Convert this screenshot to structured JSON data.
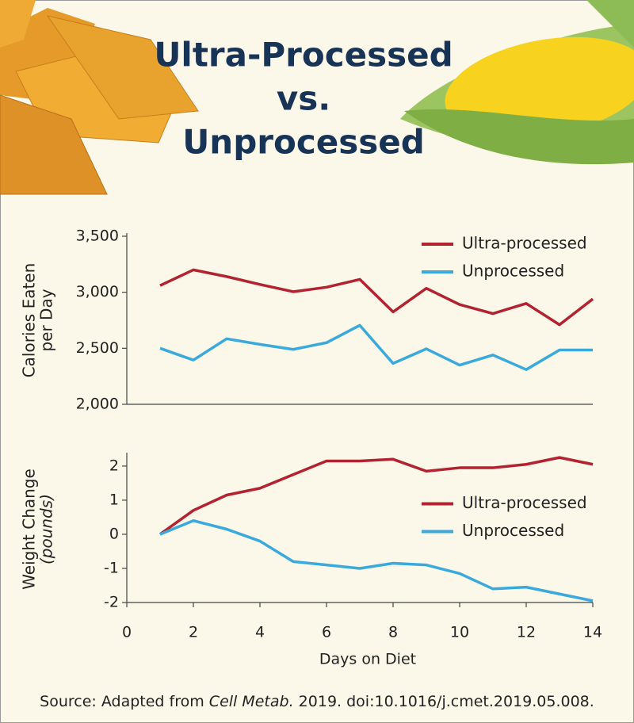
{
  "header": {
    "title": [
      "Ultra-Processed",
      "vs.",
      "Unprocessed"
    ]
  },
  "chart_data": [
    {
      "type": "line",
      "ylabel": [
        "Calories Eaten",
        "per Day"
      ],
      "x": [
        1,
        2,
        3,
        4,
        5,
        6,
        7,
        8,
        9,
        10,
        11,
        12,
        13,
        14
      ],
      "xlim": [
        0,
        14
      ],
      "ylim": [
        2000,
        3500
      ],
      "yticks": [
        {
          "value": 2000,
          "label": "2,000"
        },
        {
          "value": 2500,
          "label": "2,500"
        },
        {
          "value": 3000,
          "label": "3,000"
        },
        {
          "value": 3500,
          "label": "3,500"
        }
      ],
      "legend": "upper right",
      "series": [
        {
          "name": "Ultra-processed",
          "color": "#b32230",
          "values": [
            3060,
            3200,
            3140,
            3070,
            3005,
            3045,
            3115,
            2825,
            3035,
            2890,
            2810,
            2900,
            2710,
            2940
          ]
        },
        {
          "name": "Unprocessed",
          "color": "#3aa9dc",
          "values": [
            2500,
            2395,
            2585,
            2535,
            2490,
            2550,
            2705,
            2365,
            2495,
            2350,
            2440,
            2310,
            2485,
            2485
          ]
        }
      ]
    },
    {
      "type": "line",
      "ylabel": [
        "Weight Change",
        "(pounds)"
      ],
      "xlabel": "Days on Diet",
      "x": [
        1,
        2,
        3,
        4,
        5,
        6,
        7,
        8,
        9,
        10,
        11,
        12,
        13,
        14
      ],
      "xlim": [
        0,
        14
      ],
      "xticks": [
        0,
        2,
        4,
        6,
        8,
        10,
        12,
        14
      ],
      "ylim": [
        -2,
        2.3
      ],
      "yticks": [
        -2,
        -1,
        0,
        1,
        2
      ],
      "legend": "center right",
      "series": [
        {
          "name": "Ultra-processed",
          "color": "#b32230",
          "values": [
            0,
            0.7,
            1.15,
            1.35,
            1.75,
            2.15,
            2.15,
            2.2,
            1.85,
            1.95,
            1.95,
            2.05,
            2.25,
            2.05
          ]
        },
        {
          "name": "Unprocessed",
          "color": "#3aa9dc",
          "values": [
            0,
            0.4,
            0.15,
            -0.2,
            -0.8,
            -0.9,
            -1.0,
            -0.85,
            -0.9,
            -1.15,
            -1.6,
            -1.55,
            -1.75,
            -1.95
          ]
        }
      ]
    }
  ],
  "source": [
    "Source: Adapted from ",
    "Cell Metab.",
    " 2019. doi:10.1016/j.cmet.2019.05.008."
  ]
}
